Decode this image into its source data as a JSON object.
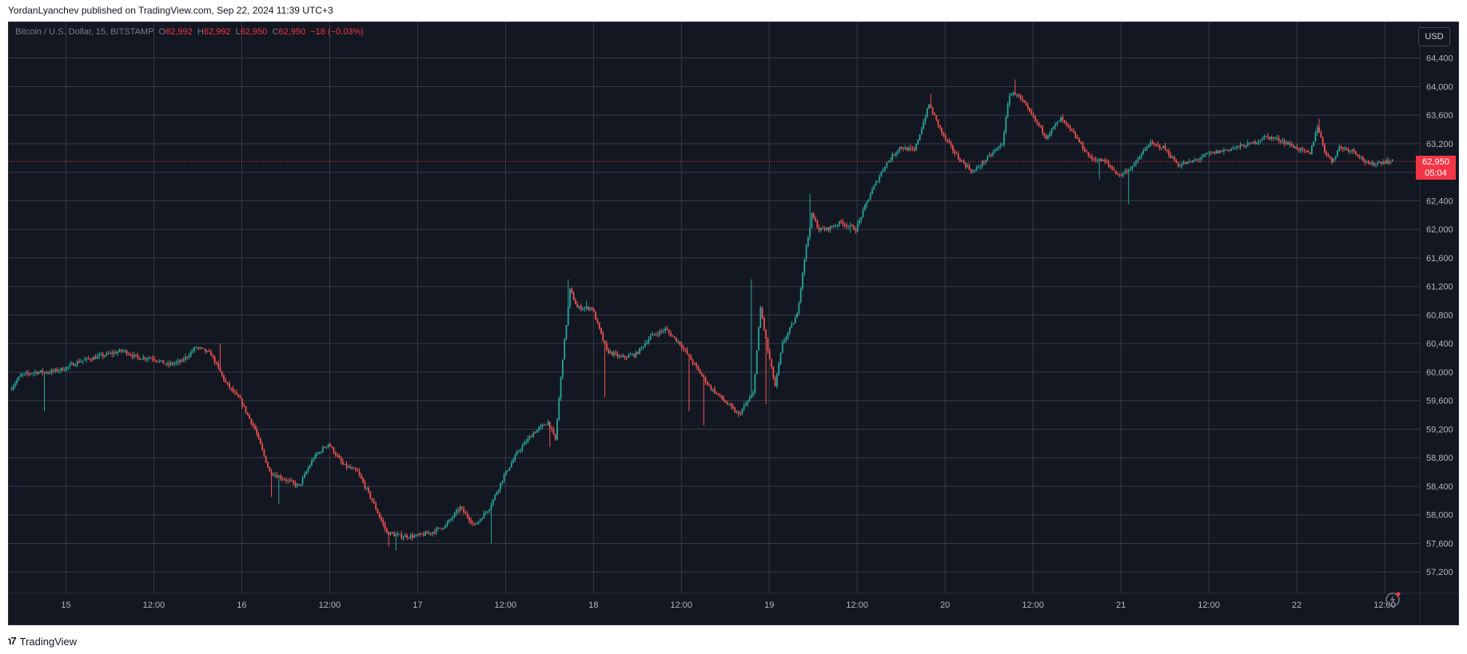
{
  "header": {
    "published": "YordanLyanchev published on TradingView.com, Sep 22, 2024 11:39 UTC+3"
  },
  "legend": {
    "symbol": "Bitcoin / U.S. Dollar, 15, BITSTAMP",
    "o_label": "O",
    "o": "62,992",
    "h_label": "H",
    "h": "62,992",
    "l_label": "L",
    "l": "62,950",
    "c_label": "C",
    "c": "62,950",
    "change": "−18 (−0.03%)"
  },
  "currency_button": "USD",
  "last_price": {
    "value": "62,950",
    "countdown": "05:04"
  },
  "footer": {
    "brand": "TradingView",
    "logo_icon": "tradingview-logo-icon"
  },
  "colors": {
    "background": "#131722",
    "up": "#26a69a",
    "down": "#ef5350",
    "grid": "#363a45",
    "price_line": "#f23645"
  },
  "chart_data": {
    "type": "candlestick",
    "y_ticks": [
      57200,
      57600,
      58000,
      58400,
      58800,
      59200,
      59600,
      60000,
      60400,
      60800,
      61200,
      61600,
      62000,
      62400,
      62800,
      63200,
      63600,
      64000,
      64400
    ],
    "y_tick_labels": [
      "57,200",
      "57,600",
      "58,000",
      "58,400",
      "58,800",
      "59,200",
      "59,600",
      "60,000",
      "60,400",
      "60,800",
      "61,200",
      "61,600",
      "62,000",
      "62,400",
      "62,800",
      "63,200",
      "63,600",
      "64,000",
      "64,400"
    ],
    "ylim": [
      56900,
      64900
    ],
    "x_ticks": [
      {
        "label": "15",
        "t": 0
      },
      {
        "label": "12:00",
        "t": 12
      },
      {
        "label": "16",
        "t": 24
      },
      {
        "label": "12:00",
        "t": 36
      },
      {
        "label": "17",
        "t": 48
      },
      {
        "label": "12:00",
        "t": 60
      },
      {
        "label": "18",
        "t": 72
      },
      {
        "label": "12:00",
        "t": 84
      },
      {
        "label": "19",
        "t": 96
      },
      {
        "label": "12:00",
        "t": 108
      },
      {
        "label": "20",
        "t": 120
      },
      {
        "label": "12:00",
        "t": 132
      },
      {
        "label": "21",
        "t": 144
      },
      {
        "label": "12:00",
        "t": 156
      },
      {
        "label": "22",
        "t": 168
      },
      {
        "label": "12:00",
        "t": 180
      }
    ],
    "xlim": [
      -7.8,
      184.8
    ],
    "last_close": 62950,
    "path": [
      [
        -7.5,
        59750
      ],
      [
        -6,
        59950
      ],
      [
        -4,
        60000
      ],
      [
        -2,
        60000
      ],
      [
        0,
        60050
      ],
      [
        2,
        60150
      ],
      [
        4,
        60200
      ],
      [
        6,
        60250
      ],
      [
        8,
        60300
      ],
      [
        10,
        60200
      ],
      [
        12,
        60200
      ],
      [
        14,
        60100
      ],
      [
        16,
        60150
      ],
      [
        18,
        60350
      ],
      [
        20,
        60250
      ],
      [
        22,
        59850
      ],
      [
        24,
        59600
      ],
      [
        26,
        59200
      ],
      [
        28,
        58600
      ],
      [
        30,
        58500
      ],
      [
        32,
        58400
      ],
      [
        34,
        58800
      ],
      [
        36,
        59000
      ],
      [
        38,
        58700
      ],
      [
        40,
        58600
      ],
      [
        42,
        58200
      ],
      [
        44,
        57750
      ],
      [
        46,
        57700
      ],
      [
        48,
        57700
      ],
      [
        50,
        57750
      ],
      [
        52,
        57850
      ],
      [
        54,
        58100
      ],
      [
        56,
        57850
      ],
      [
        58,
        58100
      ],
      [
        60,
        58550
      ],
      [
        62,
        58900
      ],
      [
        64,
        59150
      ],
      [
        66,
        59300
      ],
      [
        67,
        59050
      ],
      [
        68,
        60200
      ],
      [
        69,
        61150
      ],
      [
        70,
        60900
      ],
      [
        72,
        60900
      ],
      [
        74,
        60300
      ],
      [
        76,
        60200
      ],
      [
        78,
        60250
      ],
      [
        80,
        60500
      ],
      [
        82,
        60600
      ],
      [
        84,
        60400
      ],
      [
        86,
        60100
      ],
      [
        88,
        59800
      ],
      [
        90,
        59600
      ],
      [
        92,
        59400
      ],
      [
        94,
        59700
      ],
      [
        95,
        60900
      ],
      [
        96,
        60300
      ],
      [
        97,
        59800
      ],
      [
        98,
        60400
      ],
      [
        100,
        60800
      ],
      [
        101,
        61600
      ],
      [
        102,
        62200
      ],
      [
        103,
        62000
      ],
      [
        104,
        62000
      ],
      [
        106,
        62100
      ],
      [
        108,
        62000
      ],
      [
        110,
        62500
      ],
      [
        112,
        62900
      ],
      [
        114,
        63150
      ],
      [
        116,
        63100
      ],
      [
        118,
        63750
      ],
      [
        120,
        63300
      ],
      [
        122,
        63000
      ],
      [
        124,
        62800
      ],
      [
        126,
        63000
      ],
      [
        128,
        63200
      ],
      [
        129,
        63900
      ],
      [
        130,
        63900
      ],
      [
        132,
        63600
      ],
      [
        134,
        63300
      ],
      [
        136,
        63550
      ],
      [
        138,
        63300
      ],
      [
        140,
        63000
      ],
      [
        142,
        62950
      ],
      [
        144,
        62750
      ],
      [
        146,
        62900
      ],
      [
        148,
        63200
      ],
      [
        150,
        63150
      ],
      [
        152,
        62900
      ],
      [
        154,
        62950
      ],
      [
        156,
        63050
      ],
      [
        158,
        63100
      ],
      [
        160,
        63150
      ],
      [
        162,
        63200
      ],
      [
        164,
        63300
      ],
      [
        166,
        63250
      ],
      [
        168,
        63150
      ],
      [
        170,
        63050
      ],
      [
        171,
        63450
      ],
      [
        172,
        63100
      ],
      [
        173,
        62950
      ],
      [
        174,
        63150
      ],
      [
        176,
        63100
      ],
      [
        178,
        62900
      ],
      [
        180,
        62950
      ],
      [
        181,
        62950
      ]
    ],
    "spikes": [
      [
        -3,
        59450
      ],
      [
        21,
        60400
      ],
      [
        28,
        58250
      ],
      [
        29,
        58150
      ],
      [
        44,
        57550
      ],
      [
        45,
        57500
      ],
      [
        58,
        57600
      ],
      [
        66,
        58950
      ],
      [
        68.5,
        61300
      ],
      [
        71,
        61000
      ],
      [
        73.5,
        59650
      ],
      [
        85,
        59450
      ],
      [
        87,
        59250
      ],
      [
        93.5,
        61300
      ],
      [
        95.5,
        59550
      ],
      [
        101.5,
        62500
      ],
      [
        107,
        61950
      ],
      [
        118,
        63900
      ],
      [
        129.5,
        64100
      ],
      [
        141,
        62700
      ],
      [
        145,
        62350
      ],
      [
        171,
        63550
      ],
      [
        179,
        62900
      ]
    ]
  }
}
